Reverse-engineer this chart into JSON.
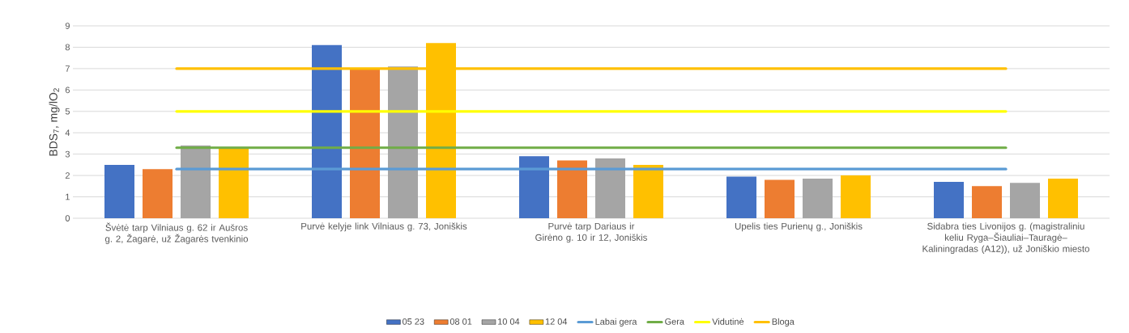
{
  "chart_data": {
    "type": "bar",
    "ylabel": "BDS$_{7}$, mg/lO$_{2}$",
    "categories": [
      "Švėtė tarp Vilniaus g. 62 ir Aušros g. 2, Žagarė, už Žagarės tvenkinio",
      "Purvė kelyje link Vilniaus g. 73, Joniškis",
      "Purvė tarp Dariaus ir Girėno g. 10 ir 12, Joniškis",
      "Upelis ties Purienų g., Joniškis",
      "Sidabra ties Livonijos g. (magistraliniu keliu Ryga–Šiauliai–Tauragė–Kaliningradas (A12)), už Joniškio miesto"
    ],
    "series": [
      {
        "name": "05 23",
        "color": "#4472c4",
        "values": [
          2.5,
          8.1,
          2.9,
          1.95,
          1.7
        ]
      },
      {
        "name": "08 01",
        "type": "bar",
        "color": "#ed7d31",
        "values": [
          2.3,
          7.0,
          2.7,
          1.8,
          1.5
        ]
      },
      {
        "name": "10 04",
        "type": "bar",
        "color": "#a5a5a5",
        "values": [
          3.4,
          7.1,
          2.8,
          1.85,
          1.65
        ]
      },
      {
        "name": "12 04",
        "type": "bar",
        "color": "#ffc000",
        "values": [
          3.3,
          8.2,
          2.5,
          2.0,
          1.85
        ]
      },
      {
        "name": "Labai gera",
        "type": "line",
        "color": "#5b9bd5",
        "values": [
          2.3,
          2.3,
          2.3,
          2.3,
          2.3
        ]
      },
      {
        "name": "Gera",
        "type": "line",
        "color": "#70ad47",
        "values": [
          3.3,
          3.3,
          3.3,
          3.3,
          3.3
        ]
      },
      {
        "name": "Vidutinė",
        "type": "line",
        "color": "#ffff00",
        "values": [
          5,
          5,
          5,
          5,
          5
        ]
      },
      {
        "name": "Bloga",
        "type": "line",
        "color": "#ffc000",
        "values": [
          7,
          7,
          7,
          7,
          7
        ]
      }
    ],
    "ylim": [
      0,
      9
    ],
    "yticks": [
      0,
      1,
      2,
      3,
      4,
      5,
      6,
      7,
      8,
      9
    ],
    "grid": "y",
    "legend": "bottom"
  }
}
